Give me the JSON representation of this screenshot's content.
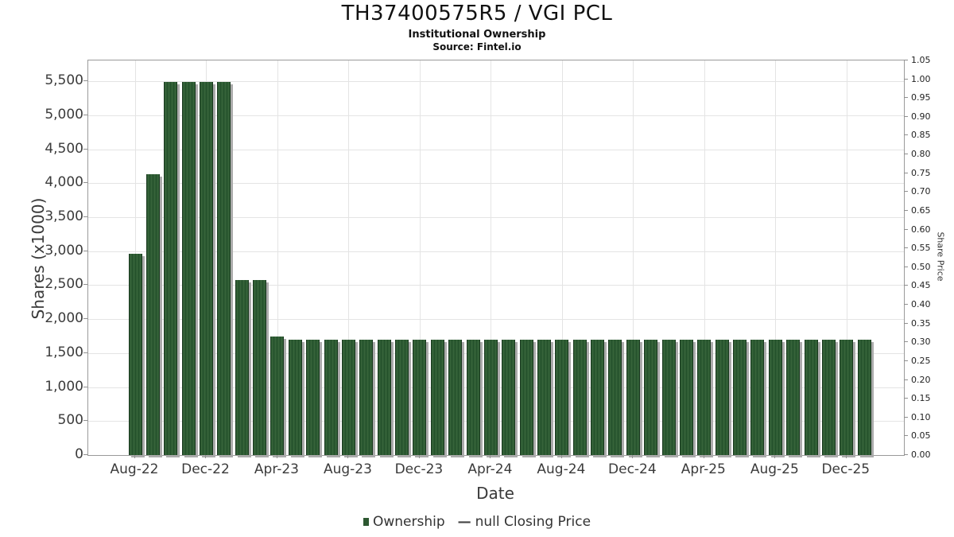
{
  "header": {
    "title": "TH37400575R5 / VGI PCL",
    "subtitle": "Institutional Ownership",
    "source": "Source: Fintel.io"
  },
  "chart_data": {
    "type": "bar",
    "title": "TH37400575R5 / VGI PCL",
    "subtitle": "Institutional Ownership",
    "source": "Source: Fintel.io",
    "xlabel": "Date",
    "ylabel_left": "Shares (x1000)",
    "ylabel_right": "Share Price",
    "bar_color": "#2d5831",
    "grid": true,
    "legend_position": "bottom-center",
    "categories": [
      "Aug-22",
      "Sep-22",
      "Oct-22",
      "Nov-22",
      "Dec-22",
      "Jan-23",
      "Feb-23",
      "Mar-23",
      "Apr-23",
      "May-23",
      "Jun-23",
      "Jul-23",
      "Aug-23",
      "Sep-23",
      "Oct-23",
      "Nov-23",
      "Dec-23",
      "Jan-24",
      "Feb-24",
      "Mar-24",
      "Apr-24",
      "May-24",
      "Jun-24",
      "Jul-24",
      "Aug-24",
      "Sep-24",
      "Oct-24",
      "Nov-24",
      "Dec-24",
      "Jan-25",
      "Feb-25",
      "Mar-25",
      "Apr-25",
      "May-25",
      "Jun-25",
      "Jul-25",
      "Aug-25",
      "Sep-25",
      "Oct-25",
      "Nov-25",
      "Dec-25",
      "Jan-26"
    ],
    "values": [
      2960,
      4130,
      5490,
      5490,
      5490,
      5490,
      2570,
      2570,
      1740,
      1700,
      1700,
      1700,
      1700,
      1700,
      1700,
      1700,
      1700,
      1700,
      1700,
      1700,
      1700,
      1700,
      1700,
      1700,
      1700,
      1700,
      1700,
      1700,
      1700,
      1700,
      1700,
      1700,
      1700,
      1700,
      1700,
      1700,
      1700,
      1700,
      1700,
      1700,
      1700,
      1700
    ],
    "series_name": "Ownership",
    "x_ticks": [
      {
        "index": 0,
        "label": "Aug-22"
      },
      {
        "index": 4,
        "label": "Dec-22"
      },
      {
        "index": 8,
        "label": "Apr-23"
      },
      {
        "index": 12,
        "label": "Aug-23"
      },
      {
        "index": 16,
        "label": "Dec-23"
      },
      {
        "index": 20,
        "label": "Apr-24"
      },
      {
        "index": 24,
        "label": "Aug-24"
      },
      {
        "index": 28,
        "label": "Dec-24"
      },
      {
        "index": 32,
        "label": "Apr-25"
      },
      {
        "index": 36,
        "label": "Aug-25"
      },
      {
        "index": 40,
        "label": "Dec-25"
      }
    ],
    "y_left_ticks": [
      {
        "value": 0,
        "label": "0"
      },
      {
        "value": 500,
        "label": "500"
      },
      {
        "value": 1000,
        "label": "1,000"
      },
      {
        "value": 1500,
        "label": "1,500"
      },
      {
        "value": 2000,
        "label": "2,000"
      },
      {
        "value": 2500,
        "label": "2,500"
      },
      {
        "value": 3000,
        "label": "3,000"
      },
      {
        "value": 3500,
        "label": "3,500"
      },
      {
        "value": 4000,
        "label": "4,000"
      },
      {
        "value": 4500,
        "label": "4,500"
      },
      {
        "value": 5000,
        "label": "5,000"
      },
      {
        "value": 5500,
        "label": "5,500"
      }
    ],
    "y_right_ticks": [
      {
        "value": 0.0,
        "label": "0.00"
      },
      {
        "value": 0.05,
        "label": "0.05"
      },
      {
        "value": 0.1,
        "label": "0.10"
      },
      {
        "value": 0.15,
        "label": "0.15"
      },
      {
        "value": 0.2,
        "label": "0.20"
      },
      {
        "value": 0.25,
        "label": "0.25"
      },
      {
        "value": 0.3,
        "label": "0.30"
      },
      {
        "value": 0.35,
        "label": "0.35"
      },
      {
        "value": 0.4,
        "label": "0.40"
      },
      {
        "value": 0.45,
        "label": "0.45"
      },
      {
        "value": 0.5,
        "label": "0.50"
      },
      {
        "value": 0.55,
        "label": "0.55"
      },
      {
        "value": 0.6,
        "label": "0.60"
      },
      {
        "value": 0.65,
        "label": "0.65"
      },
      {
        "value": 0.7,
        "label": "0.70"
      },
      {
        "value": 0.75,
        "label": "0.75"
      },
      {
        "value": 0.8,
        "label": "0.80"
      },
      {
        "value": 0.85,
        "label": "0.85"
      },
      {
        "value": 0.9,
        "label": "0.90"
      },
      {
        "value": 0.95,
        "label": "0.95"
      },
      {
        "value": 1.0,
        "label": "1.00"
      },
      {
        "value": 1.05,
        "label": "1.05"
      }
    ],
    "ylim_left": [
      0,
      5800
    ],
    "ylim_right": [
      0,
      1.05
    ],
    "legend": [
      {
        "marker": "square",
        "color": "#2d5831",
        "label": "Ownership"
      },
      {
        "marker": "dash",
        "color": "#444444",
        "label": "null Closing Price"
      }
    ]
  }
}
